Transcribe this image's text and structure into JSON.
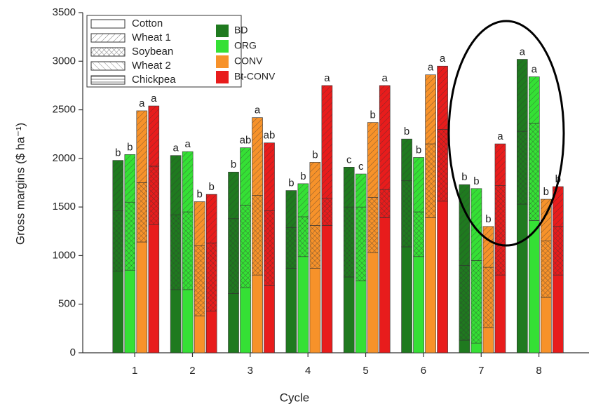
{
  "chart_data": {
    "type": "stacked-bar",
    "x_label": "Cycle",
    "y_label": "Gross margins ($ ha⁻¹)",
    "xlim": [
      0.1,
      8.6
    ],
    "xticks": [
      1,
      2,
      3,
      4,
      5,
      6,
      7,
      8
    ],
    "ylim": [
      0,
      3500
    ],
    "yticks": [
      0,
      500,
      1000,
      1500,
      2000,
      2500,
      3000,
      3500
    ],
    "crops": [
      {
        "name": "Cotton",
        "pattern": "none"
      },
      {
        "name": "Wheat 1",
        "pattern": "diag"
      },
      {
        "name": "Soybean",
        "pattern": "cross"
      },
      {
        "name": "Wheat 2",
        "pattern": "back"
      },
      {
        "name": "Chickpea",
        "pattern": "horiz"
      }
    ],
    "stack_order": [
      0,
      2,
      1,
      3,
      4
    ],
    "series": [
      {
        "name": "BD",
        "color": "#1f7a1f",
        "labels": [
          "b",
          "a",
          "b",
          "b",
          "c",
          "b",
          "b",
          "a"
        ],
        "stacks": [
          [
            840,
            650,
            610,
            870,
            780,
            1090,
            130,
            1530
          ],
          [
            520,
            610,
            480,
            380,
            410,
            430,
            830,
            740
          ],
          [
            620,
            770,
            770,
            420,
            720,
            680,
            770,
            750
          ],
          [
            null,
            null,
            null,
            null,
            null,
            null,
            null,
            null
          ],
          [
            null,
            null,
            null,
            null,
            null,
            null,
            null,
            null
          ]
        ]
      },
      {
        "name": "ORG",
        "color": "#35e035",
        "labels": [
          "b",
          "a",
          "ab",
          "b",
          "c",
          "b",
          "b",
          "a"
        ],
        "stacks": [
          [
            850,
            650,
            670,
            990,
            740,
            990,
            100,
            1360
          ],
          [
            490,
            620,
            590,
            340,
            340,
            560,
            740,
            480
          ],
          [
            700,
            800,
            850,
            410,
            760,
            460,
            850,
            1000
          ],
          [
            null,
            null,
            null,
            null,
            null,
            null,
            null,
            null
          ],
          [
            null,
            null,
            null,
            null,
            null,
            null,
            null,
            null
          ]
        ]
      },
      {
        "name": "CONV",
        "color": "#f7922a",
        "labels": [
          "a",
          "b",
          "a",
          "b",
          "b",
          "a",
          "b",
          "b"
        ],
        "stacks": [
          [
            1140,
            380,
            800,
            870,
            1030,
            1390,
            260,
            570
          ],
          [
            740,
            455,
            800,
            650,
            770,
            710,
            420,
            430
          ],
          [
            610,
            720,
            820,
            440,
            570,
            760,
            620,
            580
          ],
          [
            null,
            null,
            null,
            null,
            null,
            null,
            null,
            null
          ],
          [
            null,
            null,
            null,
            null,
            null,
            null,
            null,
            null
          ]
        ]
      },
      {
        "name": "Bt-CONV",
        "color": "#e81c1c",
        "labels": [
          "a",
          "b",
          "ab",
          "a",
          "a",
          "a",
          "a",
          "b"
        ],
        "stacks": [
          [
            1320,
            430,
            690,
            1310,
            1390,
            1560,
            800,
            800
          ],
          [
            620,
            500,
            700,
            1160,
            1070,
            650,
            430,
            410
          ],
          [
            600,
            700,
            770,
            280,
            290,
            740,
            920,
            500
          ],
          [
            null,
            null,
            null,
            null,
            null,
            null,
            null,
            null
          ],
          [
            null,
            null,
            null,
            null,
            null,
            null,
            null,
            null
          ]
        ]
      }
    ]
  }
}
